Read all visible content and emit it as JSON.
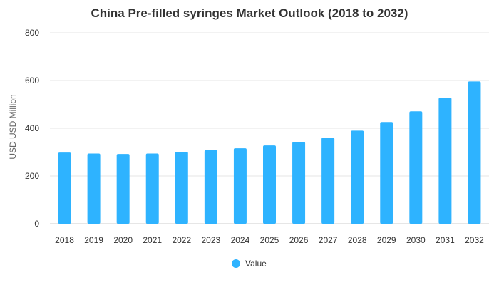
{
  "chart_data": {
    "type": "bar",
    "title": "China Pre-filled syringes Market Outlook (2018 to 2032)",
    "xlabel": "",
    "ylabel": "USD USD Million",
    "categories": [
      "2018",
      "2019",
      "2020",
      "2021",
      "2022",
      "2023",
      "2024",
      "2025",
      "2026",
      "2027",
      "2028",
      "2029",
      "2030",
      "2031",
      "2032"
    ],
    "series": [
      {
        "name": "Value",
        "values": [
          298,
          294,
          292,
          294,
          301,
          308,
          316,
          328,
          343,
          361,
          390,
          426,
          471,
          528,
          596
        ],
        "color": "#2eb3ff"
      }
    ],
    "y_ticks": [
      0,
      200,
      400,
      600,
      800
    ],
    "ylim": [
      0,
      800
    ],
    "grid": true,
    "legend_position": "bottom-center"
  }
}
